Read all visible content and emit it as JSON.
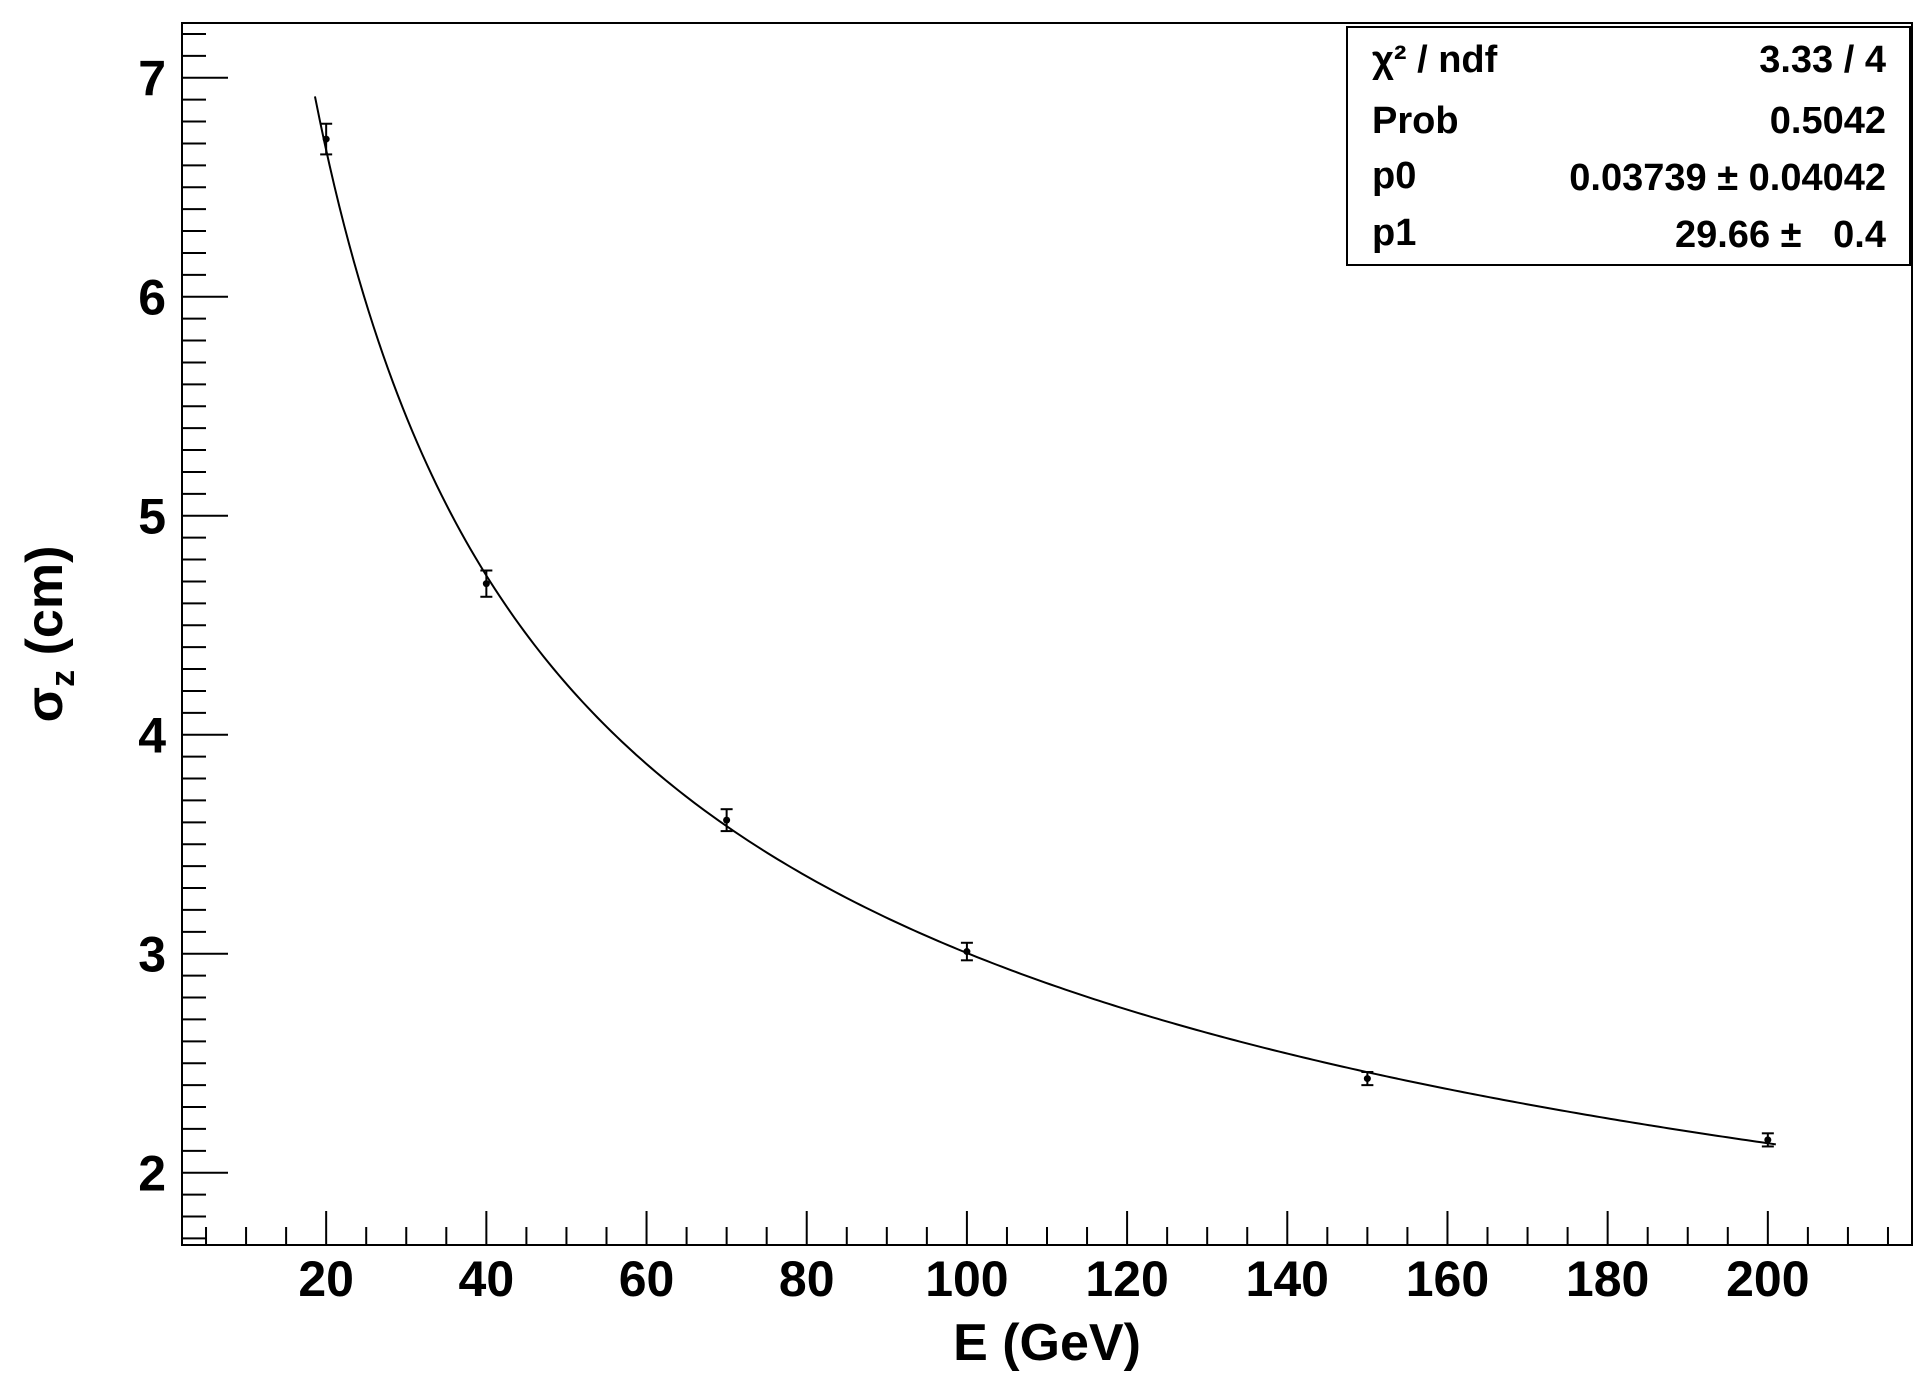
{
  "chart_data": {
    "type": "scatter",
    "xlabel": "E (GeV)",
    "ylabel": "σz (cm)",
    "ylabel_parts": {
      "main": "σ",
      "sub": "z",
      "rest": " (cm)"
    },
    "xlim": [
      2,
      218
    ],
    "ylim": [
      1.67,
      7.25
    ],
    "xticks": [
      20,
      40,
      60,
      80,
      100,
      120,
      140,
      160,
      180,
      200
    ],
    "xtick_labels": [
      "20",
      "40",
      "60",
      "80",
      "100",
      "120",
      "140",
      "160",
      "180",
      "200"
    ],
    "yticks": [
      2,
      3,
      4,
      5,
      6,
      7
    ],
    "ytick_labels": [
      "2",
      "3",
      "4",
      "5",
      "6",
      "7"
    ],
    "grid": false,
    "series": [
      {
        "points": [
          {
            "x": 20,
            "y": 6.72,
            "err": 0.07
          },
          {
            "x": 40,
            "y": 4.69,
            "err": 0.06
          },
          {
            "x": 70,
            "y": 3.61,
            "err": 0.05
          },
          {
            "x": 100,
            "y": 3.01,
            "err": 0.04
          },
          {
            "x": 150,
            "y": 2.43,
            "err": 0.03
          },
          {
            "x": 200,
            "y": 2.15,
            "err": 0.03
          }
        ]
      }
    ],
    "fit": {
      "model": "p0 + p1/sqrt(E)",
      "p0": 0.03739,
      "p1": 29.66,
      "x_range": [
        18.6,
        201
      ]
    },
    "stats_box": {
      "placement": "top-right",
      "rows": [
        {
          "label": "χ² / ndf",
          "value": "3.33 / 4"
        },
        {
          "label": "Prob",
          "value": "0.5042"
        },
        {
          "label": "p0",
          "value": "0.03739 ± 0.04042"
        },
        {
          "label": "p1",
          "value": "29.66 ±   0.4"
        }
      ]
    }
  }
}
